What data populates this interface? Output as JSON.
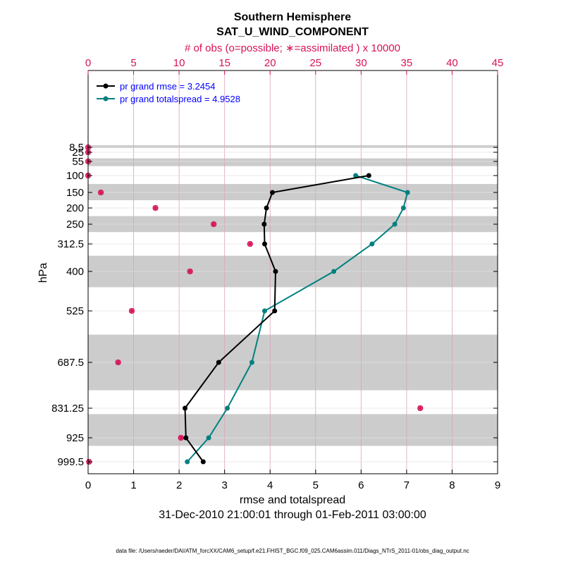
{
  "chart_data": {
    "type": "line",
    "title": "Southern Hemisphere",
    "subtitle": "SAT_U_WIND_COMPONENT",
    "xlabel": "rmse and totalspread",
    "ylabel": "hPa",
    "top_xlabel": "# of obs (o=possible; ∗=assimilated ) x 10000",
    "date_range": "31-Dec-2010 21:00:01 through 01-Feb-2011 03:00:00",
    "footnote": "data file: /Users/raeder/DAI/ATM_forcXX/CAM6_setup/f.e21.FHIST_BGC.f09_025.CAM6assim.011/Diags_NTrS_2011-01/obs_diag_output.nc",
    "xlim": [
      0,
      9
    ],
    "xticks": [
      "0",
      "1",
      "2",
      "3",
      "4",
      "5",
      "6",
      "7",
      "8",
      "9"
    ],
    "top_xlim": [
      0,
      45
    ],
    "top_xticks": [
      "0",
      "5",
      "10",
      "15",
      "20",
      "25",
      "30",
      "35",
      "40",
      "45"
    ],
    "levels": [
      8.5,
      25,
      55,
      100,
      150,
      200,
      250,
      312.5,
      400,
      525,
      687.5,
      831.25,
      925,
      999.5
    ],
    "level_labels": [
      "8.5",
      "25",
      "55",
      "100",
      "150",
      "200",
      "250",
      "312.5",
      "400",
      "525",
      "687.5",
      "831.25",
      "925",
      "999.5"
    ],
    "layer_bands": [
      [
        7,
        11
      ],
      [
        45,
        70
      ],
      [
        125,
        175
      ],
      [
        225,
        275
      ],
      [
        350,
        450
      ],
      [
        600,
        775
      ],
      [
        850,
        950
      ]
    ],
    "series": [
      {
        "name": "pr grand rmse",
        "legend": "pr grand rmse = 3.2454",
        "color": "#000000",
        "values": [
          null,
          null,
          null,
          6.17,
          4.05,
          3.92,
          3.87,
          3.88,
          4.12,
          4.1,
          2.87,
          2.13,
          2.15,
          2.53
        ]
      },
      {
        "name": "pr grand totalspread",
        "legend": "pr grand totalspread = 4.9528",
        "color": "#008080",
        "values": [
          null,
          null,
          null,
          5.88,
          7.02,
          6.93,
          6.74,
          6.24,
          5.4,
          3.88,
          3.6,
          3.06,
          2.65,
          2.18
        ]
      }
    ],
    "obs_counts": {
      "color": "#d6125a",
      "possible": [
        0.0,
        0.0,
        0.0,
        0.0,
        1.4,
        7.4,
        13.8,
        17.8,
        11.2,
        4.8,
        3.3,
        36.5,
        10.2,
        0.1
      ],
      "assimilated": [
        0.0,
        0.0,
        0.0,
        0.0,
        1.4,
        7.4,
        13.8,
        17.8,
        11.2,
        4.8,
        3.3,
        36.5,
        10.2,
        0.1
      ]
    }
  }
}
